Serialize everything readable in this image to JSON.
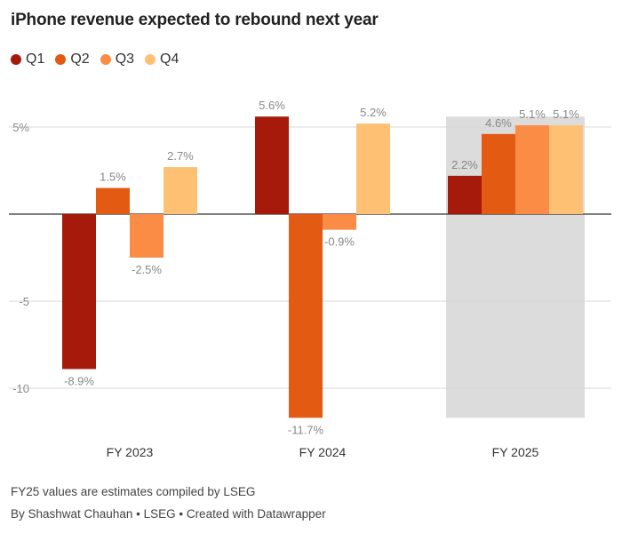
{
  "title": "iPhone revenue expected to rebound next year",
  "chart_data": {
    "type": "bar",
    "categories": [
      "FY 2023",
      "FY 2024",
      "FY 2025"
    ],
    "series": [
      {
        "name": "Q1",
        "color": "#a51a0a",
        "values": [
          -8.9,
          5.6,
          2.2
        ],
        "labels": [
          "-8.9%",
          "5.6%",
          "2.2%"
        ]
      },
      {
        "name": "Q2",
        "color": "#e35a12",
        "values": [
          1.5,
          -11.7,
          4.6
        ],
        "labels": [
          "1.5%",
          "-11.7%",
          "4.6%"
        ]
      },
      {
        "name": "Q3",
        "color": "#fb8c46",
        "values": [
          -2.5,
          -0.9,
          5.1
        ],
        "labels": [
          "-2.5%",
          "-0.9%",
          "5.1%"
        ]
      },
      {
        "name": "Q4",
        "color": "#fec173",
        "values": [
          2.7,
          5.2,
          5.1
        ],
        "labels": [
          "2.7%",
          "5.2%",
          "5.1%"
        ]
      }
    ],
    "y_ticks": [
      {
        "value": 5,
        "label": "5%"
      },
      {
        "value": 0,
        "label": ""
      },
      {
        "value": -5,
        "label": "-5"
      },
      {
        "value": -10,
        "label": "-10"
      }
    ],
    "ylim": [
      -11.7,
      5.6
    ],
    "highlight_category": "FY 2025",
    "highlight_color": "#dcdcdc"
  },
  "footer": {
    "note": "FY25 values are estimates compiled by LSEG",
    "credit": "By Shashwat Chauhan • LSEG • Created with Datawrapper"
  }
}
